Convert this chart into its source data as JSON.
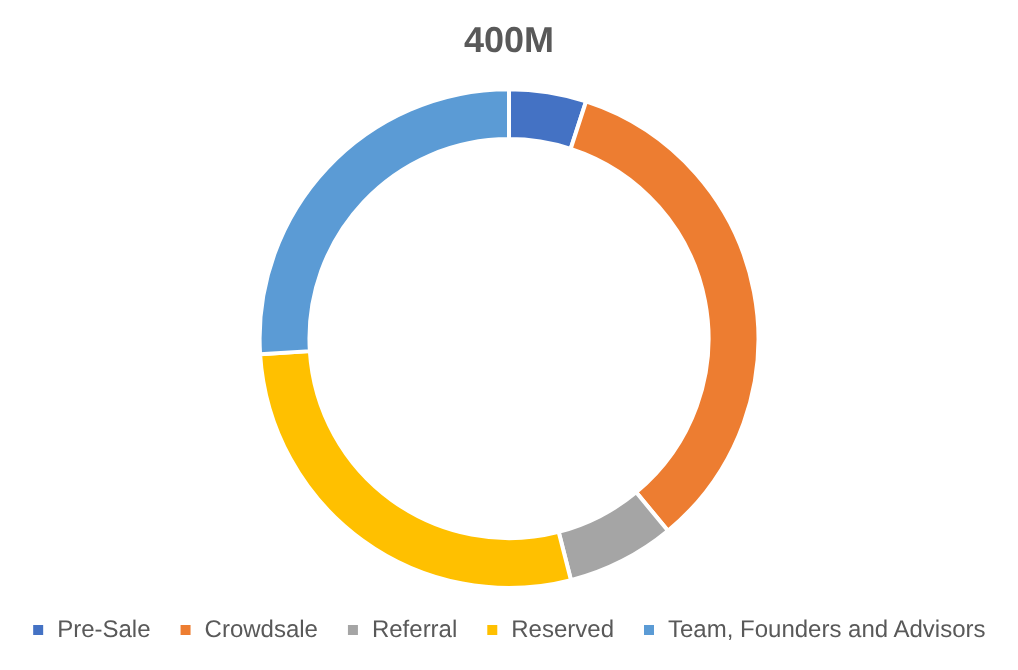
{
  "chart_data": {
    "type": "donut",
    "title": "400M",
    "categories": [
      "Pre-Sale",
      "Crowdsale",
      "Referral",
      "Reserved",
      "Team, Founders and Advisors"
    ],
    "values": [
      5,
      34,
      7,
      28,
      26
    ],
    "colors": [
      "#4472c4",
      "#ed7d31",
      "#a5a5a5",
      "#ffc000",
      "#5b9bd5"
    ],
    "legend": "bottom"
  }
}
